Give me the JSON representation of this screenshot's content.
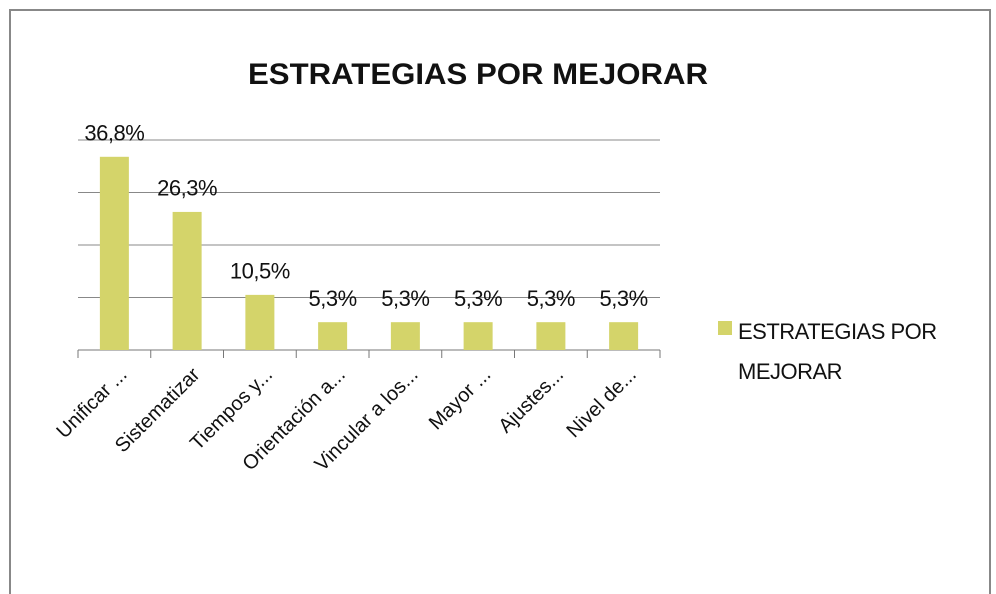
{
  "chart_data": {
    "type": "bar",
    "title": "ESTRATEGIAS POR MEJORAR",
    "categories": [
      "Unificar ...",
      "Sistematizar",
      "Tiempos y...",
      "Orientación a...",
      "Vincular a los...",
      "Mayor ...",
      "Ajustes...",
      "Nivel de..."
    ],
    "series": [
      {
        "name": "ESTRATEGIAS POR MEJORAR",
        "color": "#d4d46a",
        "values": [
          36.8,
          26.3,
          10.5,
          5.3,
          5.3,
          5.3,
          5.3,
          5.3
        ],
        "value_labels": [
          "36,8%",
          "26,3%",
          "10,5%",
          "5,3%",
          "5,3%",
          "5,3%",
          "5,3%",
          "5,3%"
        ]
      }
    ],
    "ylim": [
      0,
      40
    ],
    "yticks": [
      0,
      10,
      20,
      30,
      40
    ],
    "grid": true,
    "legend": "right"
  }
}
